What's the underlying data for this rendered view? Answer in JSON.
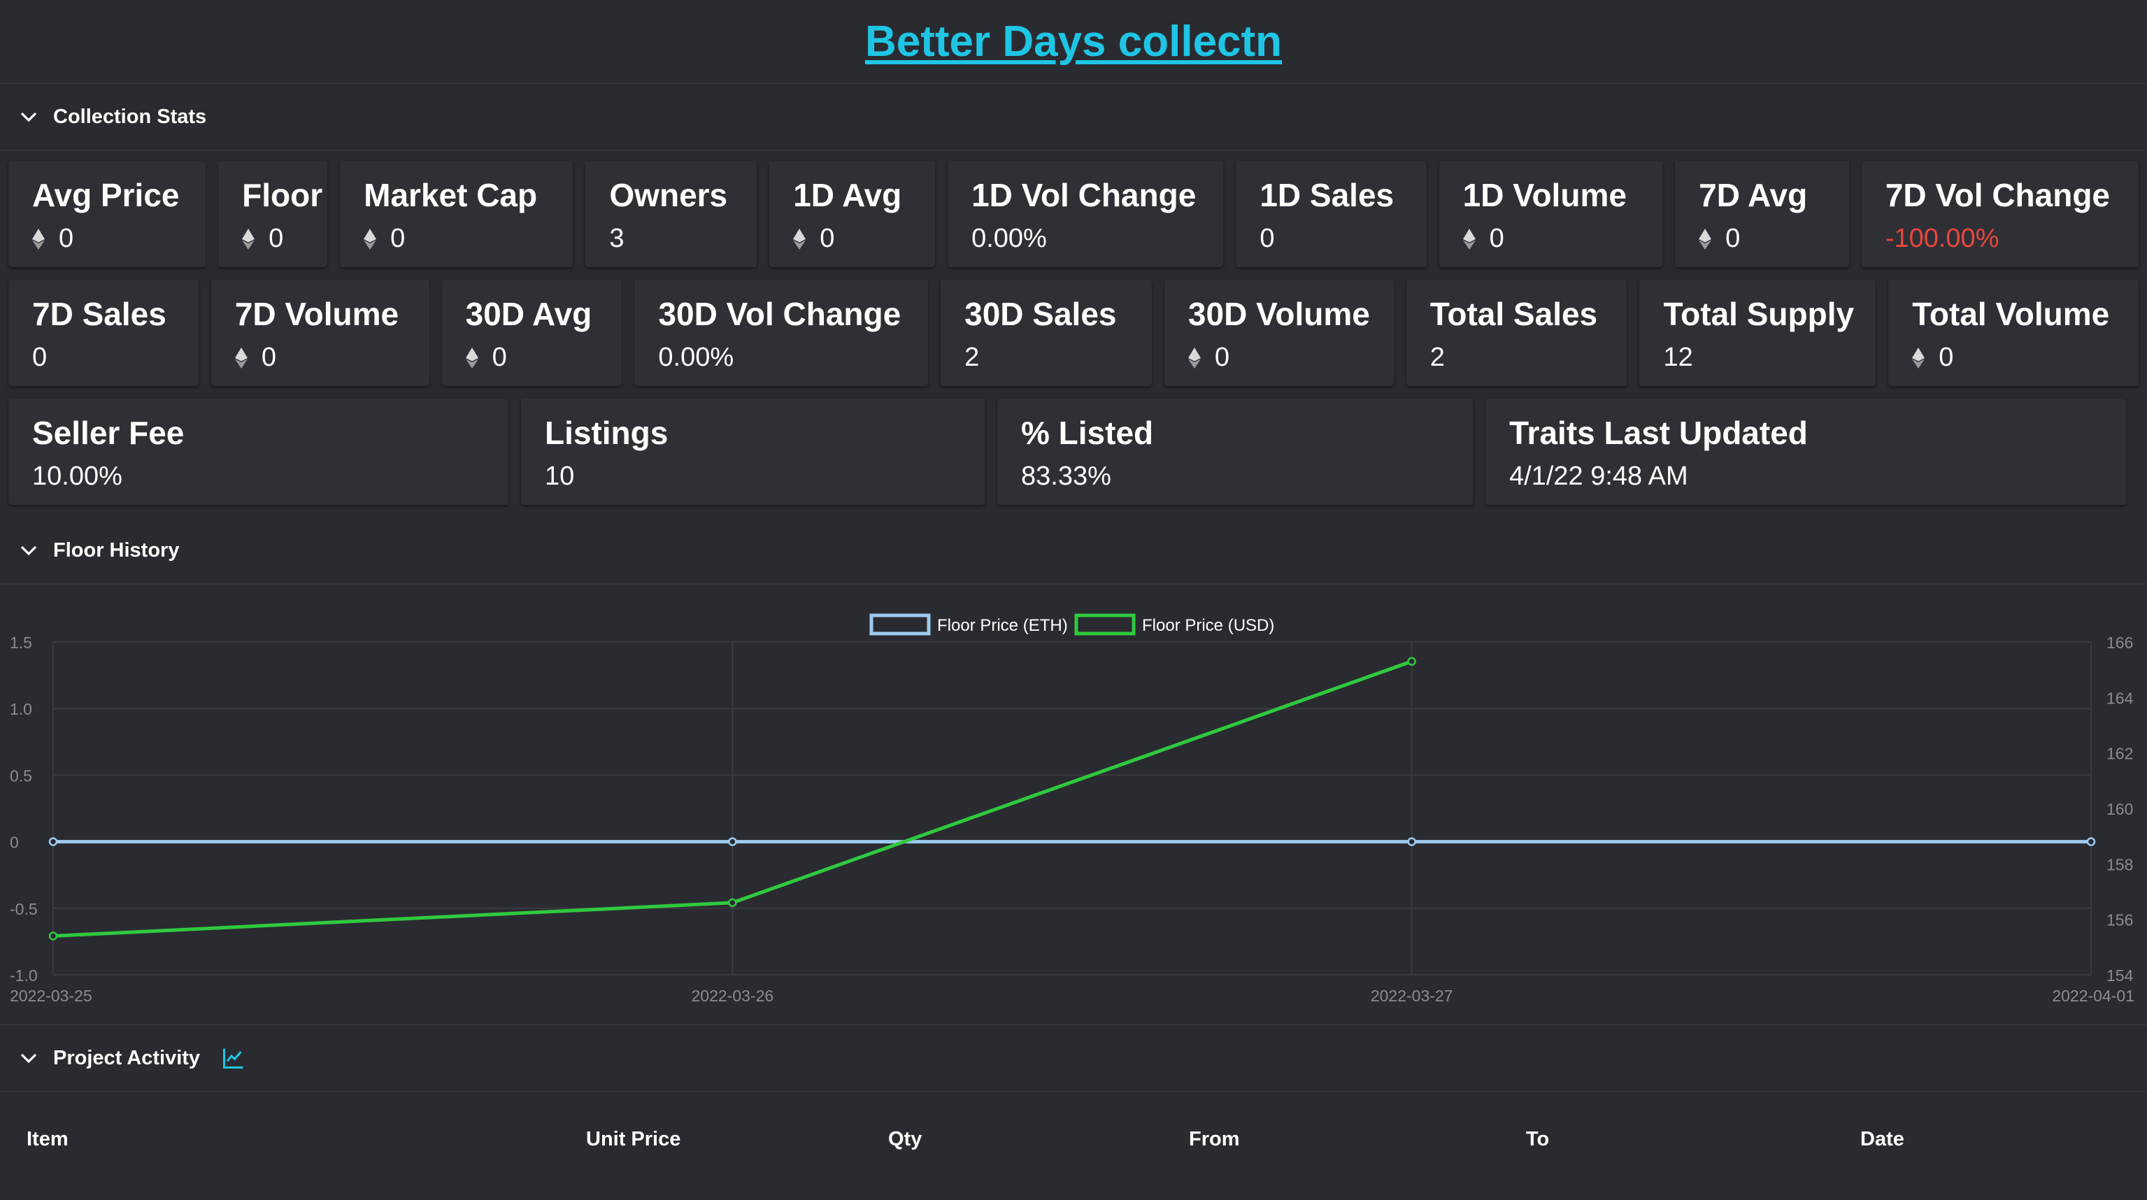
{
  "page_title": "Better Days collectn",
  "sections": {
    "stats": "Collection Stats",
    "floor": "Floor History",
    "activity": "Project Activity"
  },
  "stats_rows": [
    [
      {
        "label": "Avg Price",
        "value": "0",
        "eth": true
      },
      {
        "label": "Floor",
        "value": "0",
        "eth": true
      },
      {
        "label": "Market Cap",
        "value": "0",
        "eth": true
      },
      {
        "label": "Owners",
        "value": "3",
        "eth": false
      },
      {
        "label": "1D Avg",
        "value": "0",
        "eth": true
      },
      {
        "label": "1D Vol Change",
        "value": "0.00%",
        "eth": false
      },
      {
        "label": "1D Sales",
        "value": "0",
        "eth": false
      },
      {
        "label": "1D Volume",
        "value": "0",
        "eth": true
      },
      {
        "label": "7D Avg",
        "value": "0",
        "eth": true
      },
      {
        "label": "7D Vol Change",
        "value": "-100.00%",
        "eth": false,
        "negative": true
      }
    ],
    [
      {
        "label": "7D Sales",
        "value": "0",
        "eth": false
      },
      {
        "label": "7D Volume",
        "value": "0",
        "eth": true
      },
      {
        "label": "30D Avg",
        "value": "0",
        "eth": true
      },
      {
        "label": "30D Vol Change",
        "value": "0.00%",
        "eth": false
      },
      {
        "label": "30D Sales",
        "value": "2",
        "eth": false
      },
      {
        "label": "30D Volume",
        "value": "0",
        "eth": true
      },
      {
        "label": "Total Sales",
        "value": "2",
        "eth": false
      },
      {
        "label": "Total Supply",
        "value": "12",
        "eth": false
      },
      {
        "label": "Total Volume",
        "value": "0",
        "eth": true
      }
    ],
    [
      {
        "label": "Seller Fee",
        "value": "10.00%",
        "eth": false
      },
      {
        "label": "Listings",
        "value": "10",
        "eth": false
      },
      {
        "label": "% Listed",
        "value": "83.33%",
        "eth": false
      },
      {
        "label": "Traits Last Updated",
        "value": "4/1/22 9:48 AM",
        "eth": false
      }
    ]
  ],
  "colors": {
    "accent": "#1fc5e4",
    "eth_series": "#9ecbf0",
    "usd_series": "#2fca3e",
    "negative": "#e8463d"
  },
  "chart_data": {
    "type": "line",
    "x": [
      "2022-03-25",
      "2022-03-26",
      "2022-03-27",
      "2022-04-01"
    ],
    "series": [
      {
        "name": "Floor Price (ETH)",
        "axis": "left",
        "values": [
          0,
          0,
          0,
          0
        ]
      },
      {
        "name": "Floor Price (USD)",
        "axis": "right",
        "values": [
          155.4,
          156.6,
          165.3,
          null
        ]
      }
    ],
    "y_left": {
      "min": -1.0,
      "max": 1.5,
      "ticks": [
        "1.5",
        "1.0",
        "0.5",
        "0",
        "-0.5",
        "-1.0"
      ]
    },
    "y_right": {
      "min": 154,
      "max": 166,
      "ticks": [
        "166",
        "164",
        "162",
        "160",
        "158",
        "156",
        "154"
      ]
    },
    "legend": "top-center",
    "grid": true
  },
  "table": {
    "columns": [
      "Item",
      "Unit Price",
      "Qty",
      "From",
      "To",
      "Date"
    ]
  }
}
